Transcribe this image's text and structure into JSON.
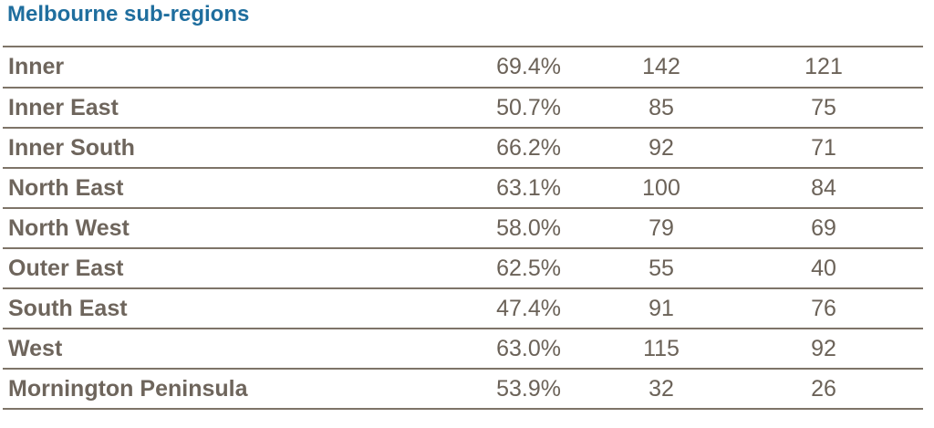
{
  "heading": "Melbourne sub-regions",
  "rows": [
    {
      "region": "Inner",
      "percent": "69.4%",
      "value_a": "142",
      "value_b": "121"
    },
    {
      "region": "Inner East",
      "percent": "50.7%",
      "value_a": "85",
      "value_b": "75"
    },
    {
      "region": "Inner South",
      "percent": "66.2%",
      "value_a": "92",
      "value_b": "71"
    },
    {
      "region": "North East",
      "percent": "63.1%",
      "value_a": "100",
      "value_b": "84"
    },
    {
      "region": "North West",
      "percent": "58.0%",
      "value_a": "79",
      "value_b": "69"
    },
    {
      "region": "Outer East",
      "percent": "62.5%",
      "value_a": "55",
      "value_b": "40"
    },
    {
      "region": "South East",
      "percent": "47.4%",
      "value_a": "91",
      "value_b": "76"
    },
    {
      "region": "West",
      "percent": "63.0%",
      "value_a": "115",
      "value_b": "92"
    },
    {
      "region": "Mornington Peninsula",
      "percent": "53.9%",
      "value_a": "32",
      "value_b": "26"
    }
  ],
  "colors": {
    "heading": "#1f6e9e",
    "text": "#6b6258",
    "rule": "#7e7468"
  }
}
